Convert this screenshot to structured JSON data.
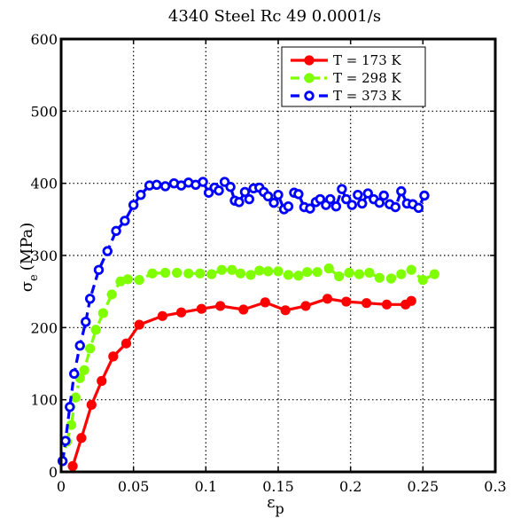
{
  "chart_data": {
    "type": "line",
    "title": "4340 Steel Rc 49 0.0001/s",
    "xlabel_main": "ε",
    "xlabel_sub": "p",
    "ylabel_main": "σ",
    "ylabel_sub": "e",
    "ylabel_unit": "(MPa)",
    "xlim": [
      0,
      0.3
    ],
    "ylim": [
      0,
      600
    ],
    "xticks": [
      0,
      0.05,
      0.1,
      0.15,
      0.2,
      0.25,
      0.3
    ],
    "xtick_labels": [
      "0",
      "0.05",
      "0.1",
      "0.15",
      "0.2",
      "0.25",
      "0.3"
    ],
    "yticks": [
      0,
      100,
      200,
      300,
      400,
      500,
      600
    ],
    "ytick_labels": [
      "0",
      "100",
      "200",
      "300",
      "400",
      "500",
      "600"
    ],
    "grid": true,
    "legend_position": "top-right",
    "series": [
      {
        "name": "T = 173 K",
        "color": "#ff0000",
        "line_style": "solid",
        "marker": "filled-circle",
        "x": [
          0.008,
          0.014,
          0.021,
          0.028,
          0.036,
          0.045,
          0.054,
          0.07,
          0.083,
          0.097,
          0.11,
          0.126,
          0.141,
          0.155,
          0.169,
          0.184,
          0.197,
          0.211,
          0.225,
          0.238,
          0.242
        ],
        "y": [
          8,
          47,
          93,
          126,
          160,
          178,
          204,
          216,
          221,
          226,
          230,
          225,
          235,
          224,
          230,
          240,
          236,
          234,
          232,
          232,
          237
        ]
      },
      {
        "name": "T = 298 K",
        "color": "#80ff00",
        "line_style": "dashdot",
        "marker": "filled-circle",
        "x": [
          0.001,
          0.004,
          0.007,
          0.01,
          0.013,
          0.016,
          0.02,
          0.024,
          0.029,
          0.035,
          0.041,
          0.046,
          0.054,
          0.063,
          0.072,
          0.08,
          0.088,
          0.096,
          0.104,
          0.111,
          0.118,
          0.124,
          0.131,
          0.137,
          0.143,
          0.15,
          0.157,
          0.164,
          0.17,
          0.177,
          0.185,
          0.192,
          0.199,
          0.206,
          0.213,
          0.22,
          0.228,
          0.235,
          0.242,
          0.25,
          0.258
        ],
        "y": [
          15,
          42,
          65,
          103,
          130,
          141,
          171,
          197,
          220,
          246,
          264,
          267,
          266,
          275,
          276,
          276,
          275,
          275,
          274,
          280,
          280,
          275,
          273,
          279,
          278,
          278,
          273,
          272,
          277,
          277,
          282,
          271,
          276,
          274,
          276,
          269,
          268,
          274,
          280,
          266,
          274
        ]
      },
      {
        "name": "T = 373 K",
        "color": "#0000ff",
        "line_style": "dashed",
        "marker": "open-circle",
        "x": [
          0.001,
          0.003,
          0.006,
          0.009,
          0.013,
          0.017,
          0.02,
          0.026,
          0.032,
          0.038,
          0.044,
          0.05,
          0.055,
          0.061,
          0.066,
          0.072,
          0.078,
          0.083,
          0.088,
          0.093,
          0.098,
          0.102,
          0.106,
          0.109,
          0.113,
          0.117,
          0.12,
          0.123,
          0.127,
          0.13,
          0.133,
          0.137,
          0.14,
          0.143,
          0.147,
          0.15,
          0.154,
          0.157,
          0.161,
          0.164,
          0.168,
          0.172,
          0.176,
          0.179,
          0.183,
          0.186,
          0.19,
          0.194,
          0.197,
          0.201,
          0.205,
          0.208,
          0.212,
          0.216,
          0.22,
          0.223,
          0.227,
          0.231,
          0.235,
          0.239,
          0.243,
          0.247,
          0.251
        ],
        "y": [
          15,
          43,
          90,
          136,
          175,
          208,
          240,
          280,
          306,
          334,
          348,
          370,
          384,
          397,
          398,
          396,
          400,
          397,
          401,
          398,
          402,
          387,
          394,
          390,
          402,
          395,
          376,
          374,
          388,
          378,
          393,
          394,
          388,
          382,
          373,
          384,
          364,
          368,
          387,
          385,
          367,
          365,
          374,
          378,
          370,
          378,
          368,
          392,
          378,
          370,
          384,
          372,
          386,
          378,
          373,
          383,
          371,
          367,
          389,
          372,
          371,
          366,
          383
        ]
      }
    ]
  }
}
